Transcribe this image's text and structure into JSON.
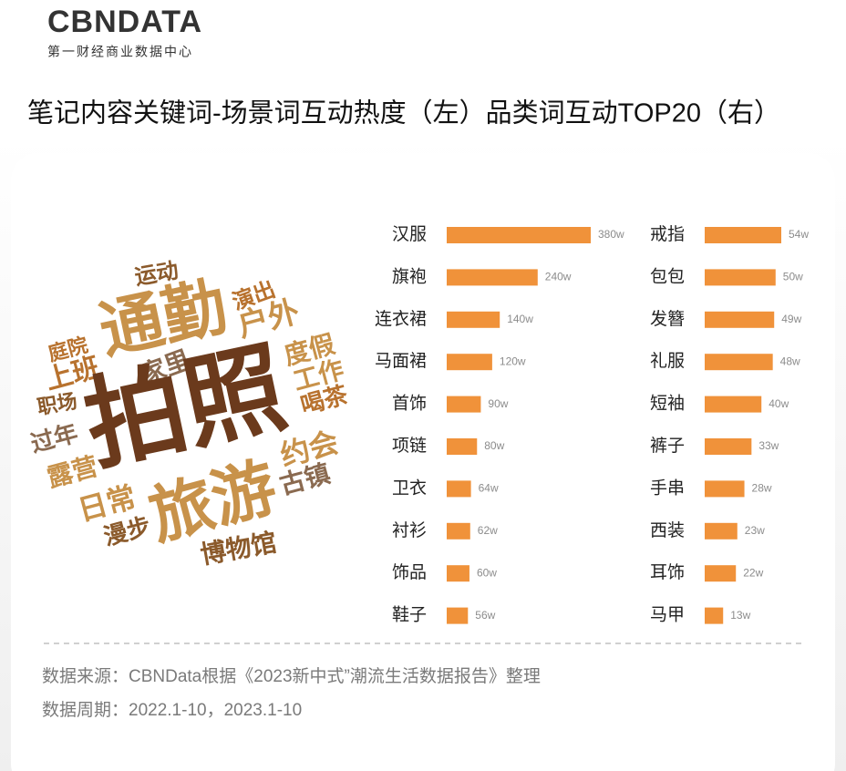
{
  "header": {
    "logo": "CBNDATA",
    "logo_subtitle": "第一财经商业数据中心"
  },
  "title": "笔记内容关键词-场景词互动热度（左）品类词互动TOP20（右）",
  "wordcloud": {
    "words": [
      "运动",
      "通勤",
      "演出",
      "户外",
      "庭院",
      "上班",
      "家里",
      "度假",
      "工作",
      "喝茶",
      "职场",
      "拍照",
      "过年",
      "约会",
      "古镇",
      "露营",
      "日常",
      "旅游",
      "漫步",
      "博物馆"
    ]
  },
  "chart_data": [
    {
      "type": "bar",
      "orientation": "horizontal",
      "color": "#f0923a",
      "categories": [
        "汉服",
        "旗袍",
        "连衣裙",
        "马面裙",
        "首饰",
        "项链",
        "卫衣",
        "衬衫",
        "饰品",
        "鞋子"
      ],
      "values": [
        380,
        240,
        140,
        120,
        90,
        80,
        64,
        62,
        60,
        56
      ],
      "value_labels": [
        "380w",
        "240w",
        "140w",
        "120w",
        "90w",
        "80w",
        "64w",
        "62w",
        "60w",
        "56w"
      ]
    },
    {
      "type": "bar",
      "orientation": "horizontal",
      "color": "#f0923a",
      "categories": [
        "戒指",
        "包包",
        "发簪",
        "礼服",
        "短袖",
        "裤子",
        "手串",
        "西装",
        "耳饰",
        "马甲"
      ],
      "values": [
        54,
        50,
        49,
        48,
        40,
        33,
        28,
        23,
        22,
        13
      ],
      "value_labels": [
        "54w",
        "50w",
        "49w",
        "48w",
        "40w",
        "33w",
        "28w",
        "23w",
        "22w",
        "13w"
      ]
    }
  ],
  "footer": {
    "source": "数据来源：CBNData根据《2023新中式”潮流生活数据报告》整理",
    "period": "数据周期：2022.1-10，2023.1-10"
  }
}
